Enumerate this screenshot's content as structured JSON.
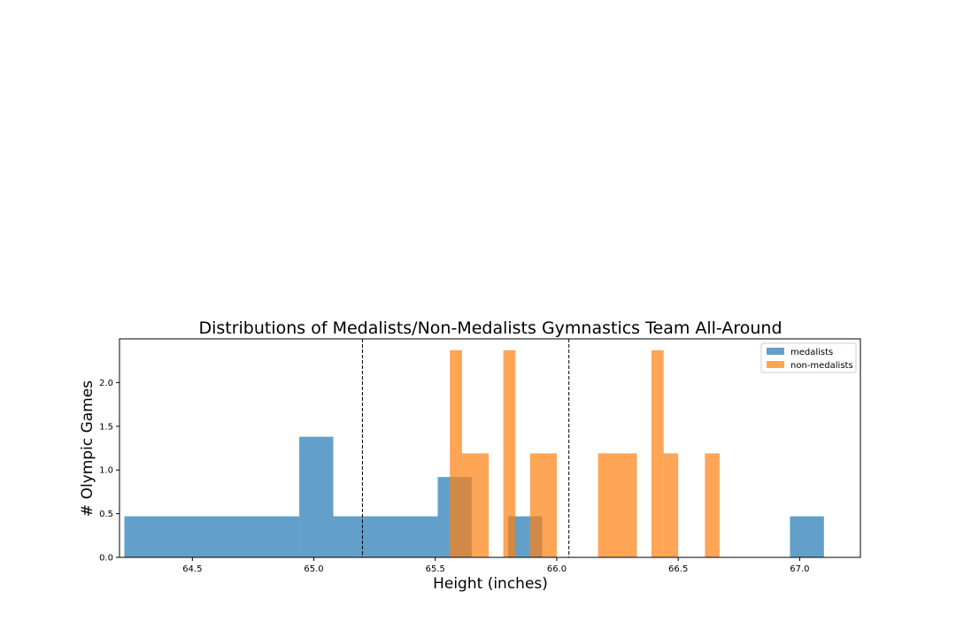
{
  "chart_data": {
    "type": "bar",
    "title": "Distributions of Medalists/Non-Medalists Gymnastics Team All-Around",
    "xlabel": "Height (inches)",
    "ylabel": "# Olympic Games",
    "xlim": [
      64.2,
      67.25
    ],
    "ylim": [
      0,
      2.5
    ],
    "x_ticks": [
      64.5,
      65.0,
      65.5,
      66.0,
      66.5,
      67.0
    ],
    "x_tick_labels": [
      "64.5",
      "65.0",
      "65.5",
      "66.0",
      "66.5",
      "67.0"
    ],
    "y_ticks": [
      0.0,
      0.5,
      1.0,
      1.5,
      2.0
    ],
    "y_tick_labels": [
      "0.0",
      "0.5",
      "1.0",
      "1.5",
      "2.0"
    ],
    "legend_position": "upper right",
    "grid": false,
    "series": [
      {
        "name": "medalists",
        "color": "#1f77b4",
        "opacity": 0.7,
        "bins": [
          {
            "x0": 64.22,
            "x1": 64.94,
            "value": 0.47
          },
          {
            "x0": 64.94,
            "x1": 65.08,
            "value": 1.38
          },
          {
            "x0": 65.08,
            "x1": 65.51,
            "value": 0.47
          },
          {
            "x0": 65.51,
            "x1": 65.65,
            "value": 0.92
          },
          {
            "x0": 65.8,
            "x1": 65.94,
            "value": 0.47
          },
          {
            "x0": 66.96,
            "x1": 67.1,
            "value": 0.47
          }
        ]
      },
      {
        "name": "non-medalists",
        "color": "#ff7f0e",
        "opacity": 0.7,
        "bins": [
          {
            "x0": 65.56,
            "x1": 65.61,
            "value": 2.37
          },
          {
            "x0": 65.61,
            "x1": 65.72,
            "value": 1.19
          },
          {
            "x0": 65.78,
            "x1": 65.83,
            "value": 2.37
          },
          {
            "x0": 65.89,
            "x1": 66.0,
            "value": 1.19
          },
          {
            "x0": 66.17,
            "x1": 66.33,
            "value": 1.19
          },
          {
            "x0": 66.39,
            "x1": 66.44,
            "value": 2.37
          },
          {
            "x0": 66.44,
            "x1": 66.5,
            "value": 1.19
          },
          {
            "x0": 66.61,
            "x1": 66.67,
            "value": 1.19
          }
        ]
      }
    ],
    "reference_lines": [
      65.2,
      66.05
    ]
  }
}
